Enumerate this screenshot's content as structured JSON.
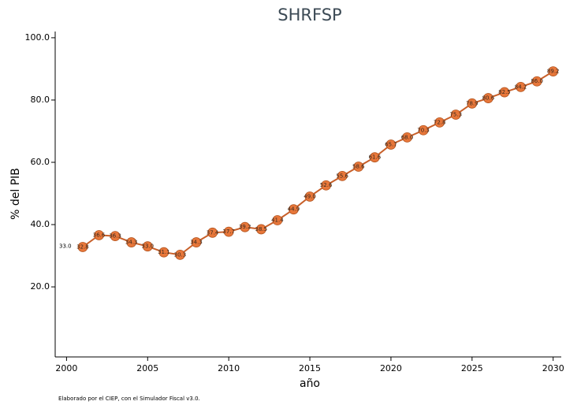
{
  "chart_data": {
    "type": "line",
    "title": "SHRFSP",
    "x_label": "año",
    "y_label": "% del PIB",
    "note": "Elaborado por el CIEP, con el Simulador Fiscal v3.0.",
    "x": [
      2001,
      2002,
      2003,
      2004,
      2005,
      2006,
      2007,
      2008,
      2009,
      2010,
      2011,
      2012,
      2013,
      2014,
      2015,
      2016,
      2017,
      2018,
      2019,
      2020,
      2021,
      2022,
      2023,
      2024,
      2025,
      2026,
      2027,
      2028,
      2029,
      2030
    ],
    "series": [
      {
        "name": "SHRFSP",
        "color": "#c8602a",
        "values": [
          32.8,
          36.6,
          36.3,
          34.3,
          33.0,
          31.1,
          30.3,
          34.3,
          37.4,
          37.7,
          39.2,
          38.5,
          41.4,
          44.9,
          49.0,
          52.6,
          55.6,
          58.6,
          61.6,
          65.7,
          68.0,
          70.3,
          72.8,
          75.3,
          78.9,
          80.6,
          82.5,
          84.2,
          86.0,
          89.2
        ],
        "value_labels": [
          "32.8",
          "36.6",
          "36.3",
          "34.3",
          "33.0",
          "31.1",
          "30.3",
          "34.3",
          "37.4",
          "37.7",
          "39.2",
          "38.5",
          "41.4",
          "44.9",
          "49.0",
          "52.6",
          "55.6",
          "58.6",
          "61.6",
          "65.7",
          "68.0",
          "70.3",
          "72.8",
          "75.3",
          "78.9",
          "80.6",
          "82.5",
          "84.2",
          "86.0",
          "89.2"
        ]
      }
    ],
    "annotations": [
      {
        "value": 33.0,
        "label": "33.0"
      }
    ],
    "xlim": [
      1999.3,
      2030.5
    ],
    "ylim": [
      -2.5,
      102
    ],
    "xticks": [
      2000,
      2005,
      2010,
      2015,
      2020,
      2025,
      2030
    ],
    "yticks": [
      {
        "value": 20,
        "label": "20.0"
      },
      {
        "value": 40,
        "label": "40.0"
      },
      {
        "value": 60,
        "label": "60.0"
      },
      {
        "value": 80,
        "label": "80.0"
      },
      {
        "value": 100,
        "label": "100.0"
      }
    ],
    "grid": false
  }
}
